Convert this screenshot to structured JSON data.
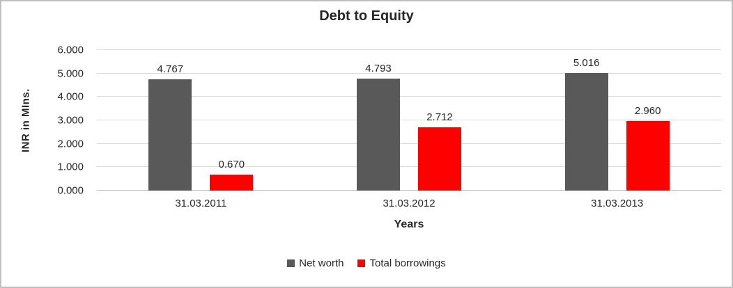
{
  "chart_data": {
    "type": "bar",
    "title": "Debt to Equity",
    "xlabel": "Years",
    "ylabel": "INR in MIns.",
    "categories": [
      "31.03.2011",
      "31.03.2012",
      "31.03.2013"
    ],
    "series": [
      {
        "name": "Net worth",
        "color": "#595959",
        "values": [
          4.767,
          4.793,
          5.016
        ],
        "labels": [
          "4.767",
          "4.793",
          "5.016"
        ]
      },
      {
        "name": "Total borrowings",
        "color": "#ff0000",
        "values": [
          0.67,
          2.712,
          2.96
        ],
        "labels": [
          "0.670",
          "2.712",
          "2.960"
        ]
      }
    ],
    "ylim": [
      0,
      6
    ],
    "yticks": [
      0,
      1,
      2,
      3,
      4,
      5,
      6
    ],
    "ytick_labels": [
      "0.000",
      "1.000",
      "2.000",
      "3.000",
      "4.000",
      "5.000",
      "6.000"
    ],
    "grid": true,
    "legend_position": "bottom"
  }
}
